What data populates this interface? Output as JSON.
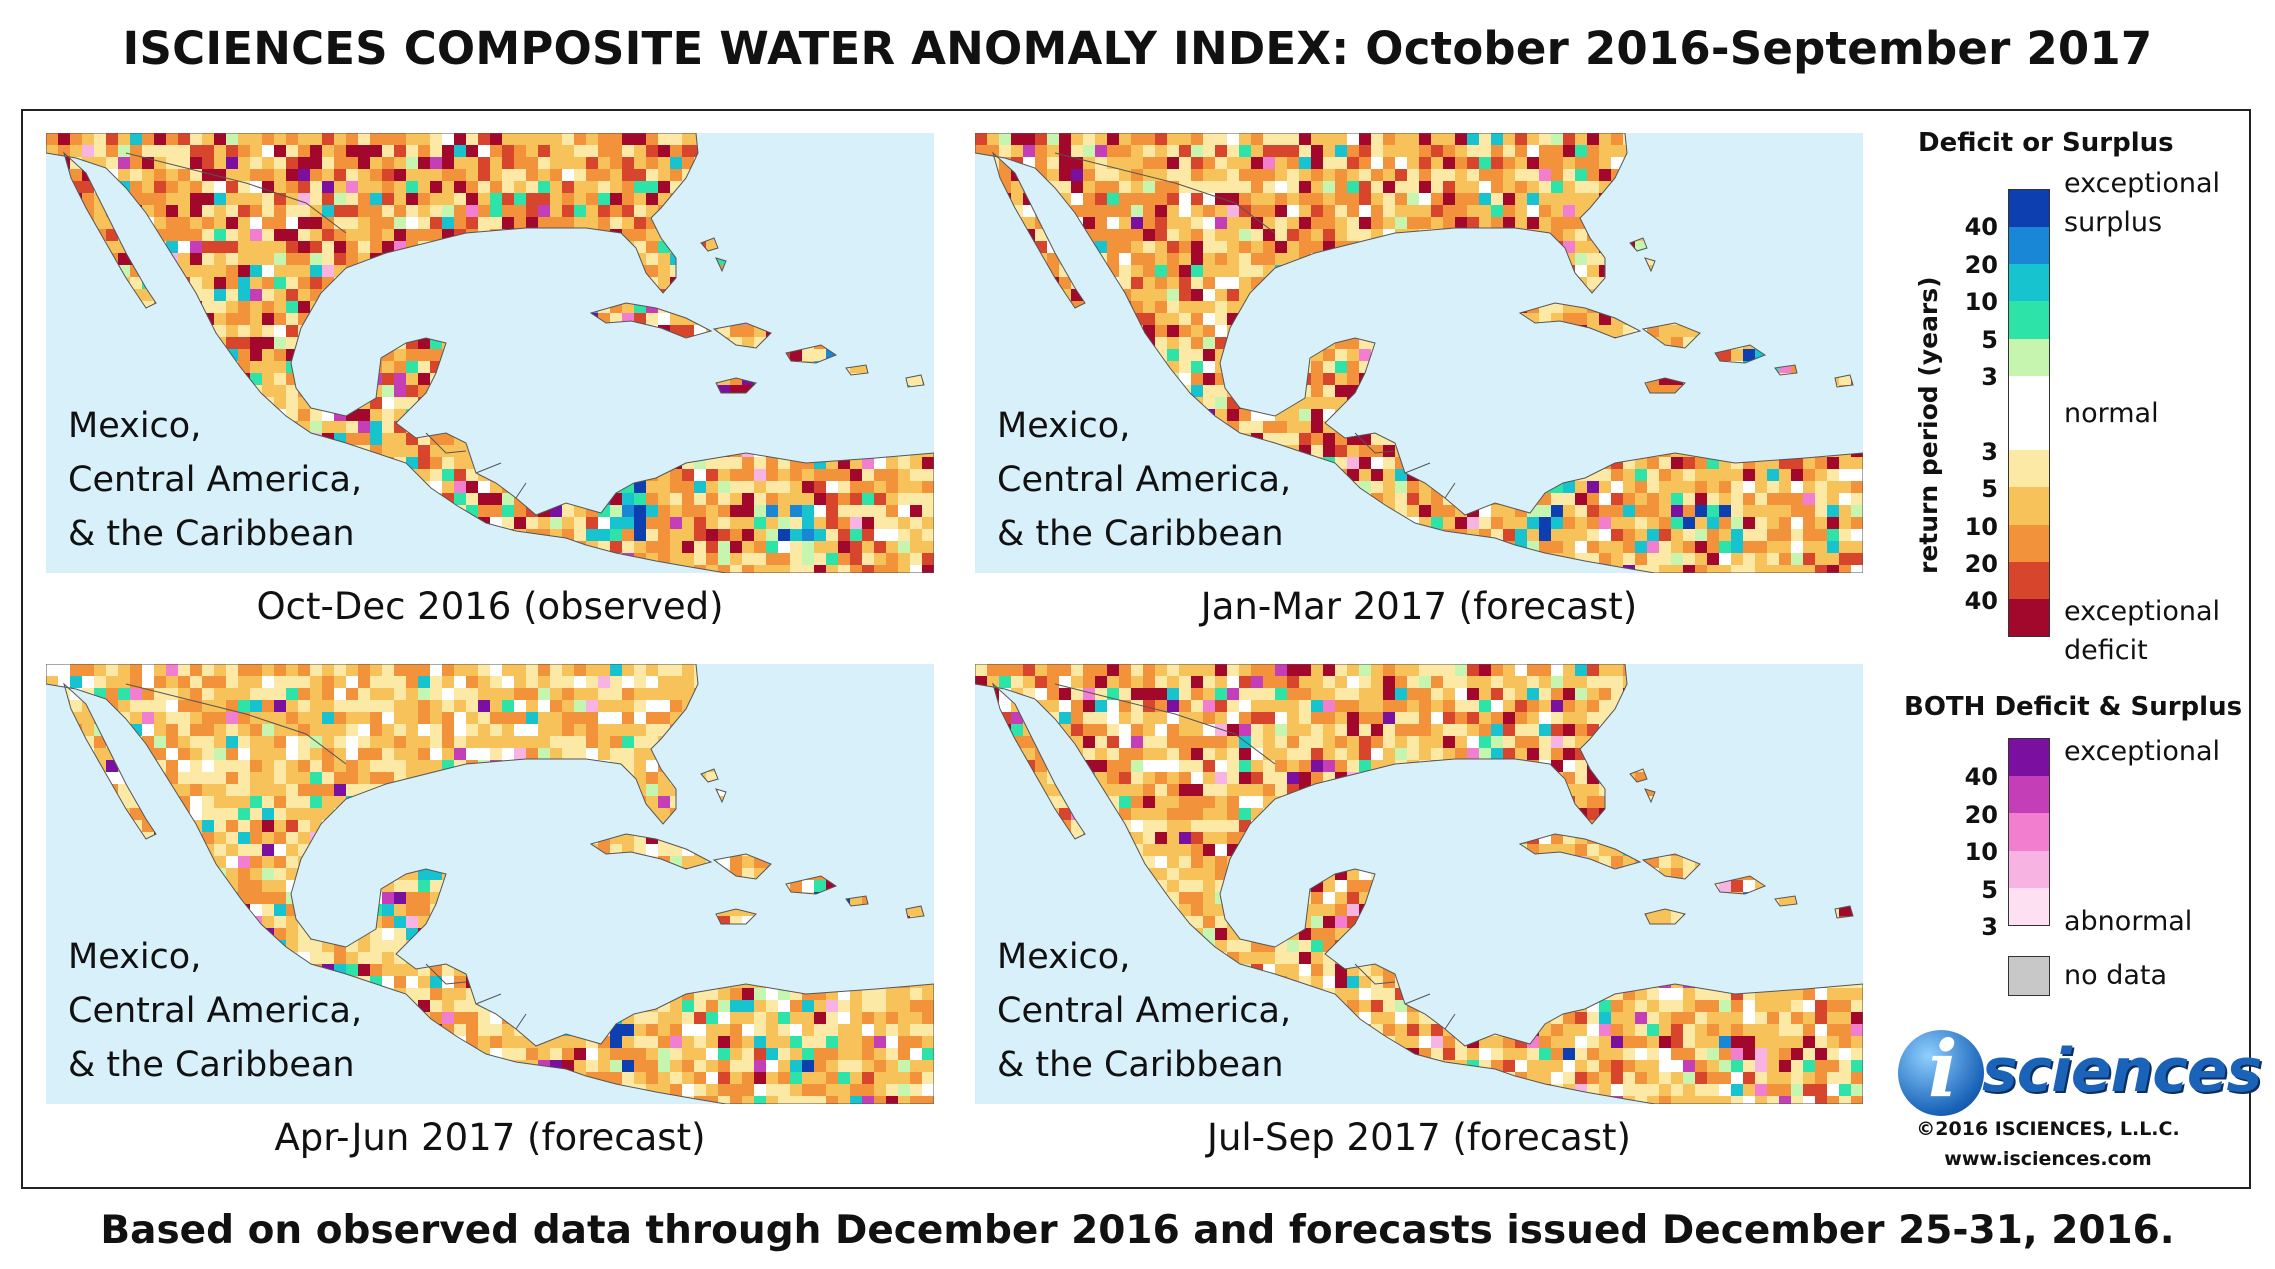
{
  "title": "ISCIENCES COMPOSITE WATER ANOMALY INDEX: October 2016-September 2017",
  "footer": "Based on observed data through December 2016 and forecasts issued December 25-31, 2016.",
  "region_label": [
    "Mexico,",
    "Central America,",
    "& the Caribbean"
  ],
  "panels": [
    {
      "caption": "Oct-Dec 2016 (observed)",
      "seed": 11,
      "bias": 0.25
    },
    {
      "caption": "Jan-Mar 2017 (forecast)",
      "seed": 23,
      "bias": 0.15
    },
    {
      "caption": "Apr-Jun 2017 (forecast)",
      "seed": 37,
      "bias": -0.15
    },
    {
      "caption": "Jul-Sep 2017 (forecast)",
      "seed": 51,
      "bias": 0.05
    }
  ],
  "legend": {
    "heading1": "Deficit or Surplus",
    "axis_label": "return period (years)",
    "surplus_colors": [
      "#0d3fb0",
      "#1a86d6",
      "#17c3cf",
      "#2ee3a8",
      "#c6f5b0"
    ],
    "normal_color": "#ffffff",
    "deficit_colors": [
      "#fde9a6",
      "#f7c25a",
      "#f2933b",
      "#d7452d",
      "#a1082b"
    ],
    "surplus_numbers": [
      "40",
      "20",
      "10",
      "5",
      "3"
    ],
    "deficit_numbers": [
      "3",
      "5",
      "10",
      "20",
      "40"
    ],
    "exceptional_surplus": [
      "exceptional",
      "surplus"
    ],
    "normal": "normal",
    "exceptional_deficit": [
      "exceptional",
      "deficit"
    ],
    "heading2": "BOTH Deficit & Surplus",
    "both_colors": [
      "#7a0fa0",
      "#c43fb7",
      "#f27ed0",
      "#f7b4e3",
      "#fde0f2"
    ],
    "both_numbers": [
      "40",
      "20",
      "10",
      "5",
      "3"
    ],
    "both_top": "exceptional",
    "both_bottom": "abnormal",
    "nodata_color": "#c8c8c8",
    "nodata": "no data"
  },
  "logo": {
    "name": "isciences",
    "mark": "i",
    "text": "sciences"
  },
  "copyright": "©2016 ISCIENCES, L.L.C.",
  "website": "www.isciences.com",
  "colors": {
    "ocean": "#d8f0fa"
  }
}
